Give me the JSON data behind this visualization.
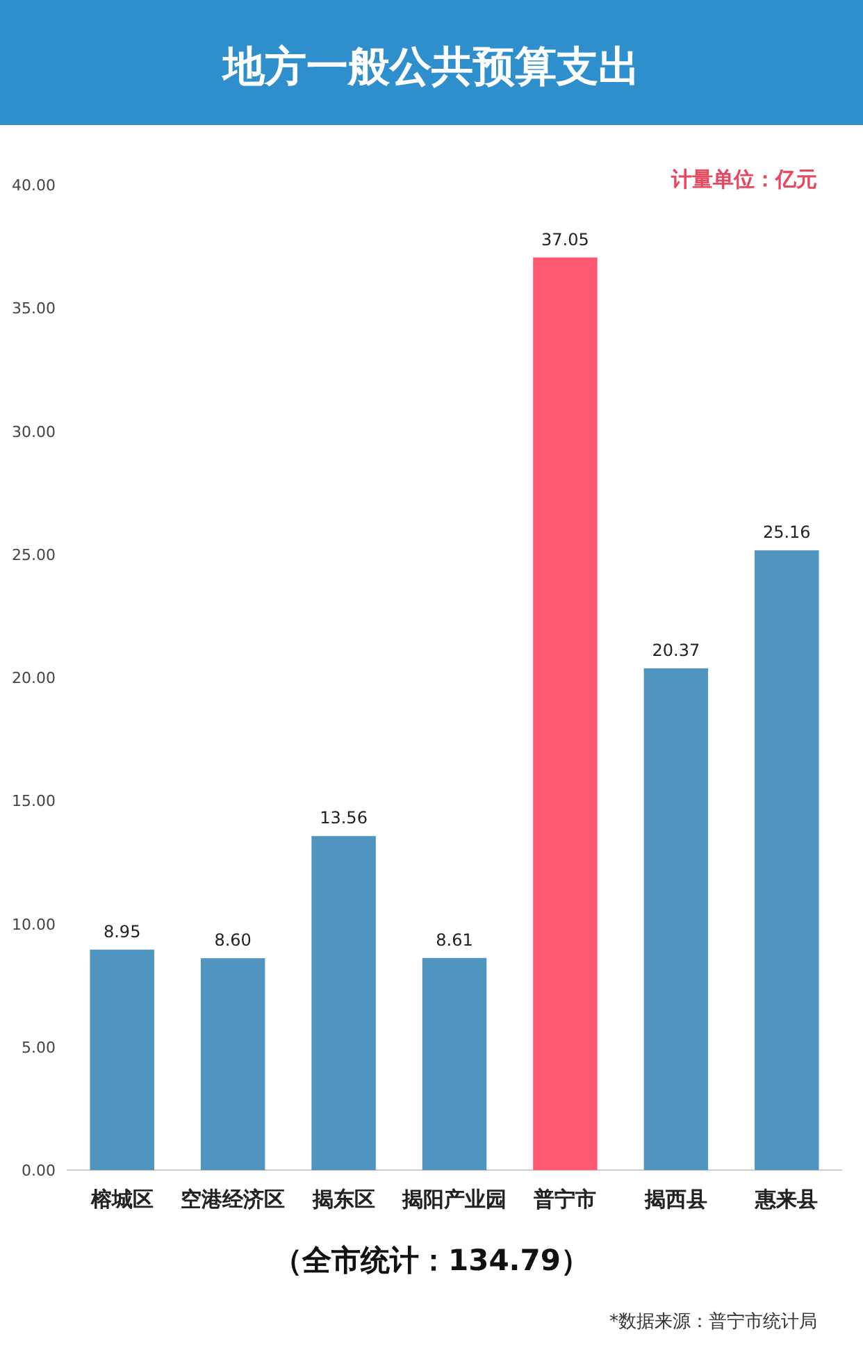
{
  "chart_data": {
    "type": "bar",
    "title": "地方一般公共预算支出",
    "categories": [
      "榕城区",
      "空港经济区",
      "揭东区",
      "揭阳产业园",
      "普宁市",
      "揭西县",
      "惠来县"
    ],
    "values": [
      8.95,
      8.6,
      13.56,
      8.61,
      37.05,
      20.37,
      25.16
    ],
    "value_labels": [
      "8.95",
      "8.60",
      "13.56",
      "8.61",
      "37.05",
      "20.37",
      "25.16"
    ],
    "colors": [
      "#4f95bf",
      "#4f95bf",
      "#4f95bf",
      "#4f95bf",
      "#ff5872",
      "#4f95bf",
      "#4f95bf"
    ],
    "ylim": [
      0,
      40
    ],
    "yticks": [
      {
        "value": 0,
        "label": "0.00"
      },
      {
        "value": 5,
        "label": "5.00"
      },
      {
        "value": 10,
        "label": "10.00"
      },
      {
        "value": 15,
        "label": "15.00"
      },
      {
        "value": 20,
        "label": "20.00"
      },
      {
        "value": 25,
        "label": "25.00"
      },
      {
        "value": 30,
        "label": "30.00"
      },
      {
        "value": 35,
        "label": "35.00"
      },
      {
        "value": 40,
        "label": "40.00"
      }
    ],
    "annotations": [
      "计量单位：亿元",
      "（全市统计：134.79）",
      "*数据来源：普宁市统计局"
    ]
  }
}
